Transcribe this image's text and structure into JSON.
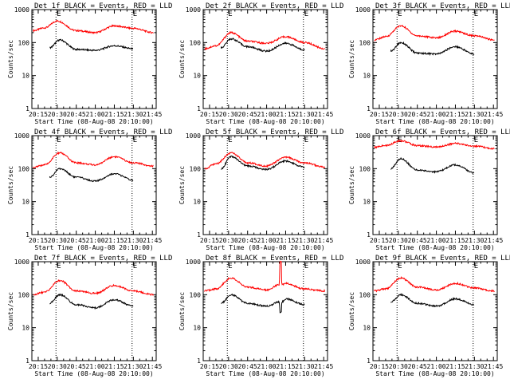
{
  "chart_data": [
    {
      "type": "line",
      "title": "Det 1f BLACK = Events, RED = LLD",
      "xlabel": "",
      "ylabel": "Counts/sec",
      "x_ticks": [
        "20:15",
        "20:30",
        "20:45",
        "21:00",
        "21:15",
        "21:30",
        "21:45"
      ],
      "y_ticks": [
        "1",
        "10",
        "100",
        "1000"
      ],
      "ylim": [
        1,
        1000
      ],
      "yscale": "log",
      "markers": [
        "E",
        "E"
      ],
      "marker_times": [
        "20:29",
        "21:29"
      ],
      "series": [
        {
          "name": "RED = LLD",
          "color": "#ff0000",
          "x": [
            "20:11",
            "20:20",
            "20:30",
            "20:45",
            "21:00",
            "21:15",
            "21:30",
            "21:46"
          ],
          "values": [
            230,
            280,
            450,
            230,
            200,
            320,
            270,
            200
          ]
        },
        {
          "name": "BLACK = Events",
          "color": "#000000",
          "x": [
            "20:24",
            "20:32",
            "20:45",
            "21:00",
            "21:15",
            "21:30"
          ],
          "values": [
            70,
            120,
            62,
            58,
            80,
            65
          ]
        }
      ]
    },
    {
      "type": "line",
      "title": "Det 2f BLACK = Events, RED = LLD",
      "xlabel": "",
      "ylabel": "Counts/sec",
      "x_ticks": [
        "20:15",
        "20:30",
        "20:45",
        "21:00",
        "21:15",
        "21:30",
        "21:45"
      ],
      "y_ticks": [
        "1",
        "10",
        "100",
        "1000"
      ],
      "ylim": [
        1,
        1000
      ],
      "yscale": "log",
      "markers": [
        "E",
        "E"
      ],
      "marker_times": [
        "20:29",
        "21:29"
      ],
      "series": [
        {
          "name": "RED = LLD",
          "color": "#ff0000",
          "x": [
            "20:11",
            "20:20",
            "20:32",
            "20:45",
            "21:00",
            "21:15",
            "21:30",
            "21:46"
          ],
          "values": [
            65,
            80,
            200,
            110,
            95,
            150,
            100,
            65
          ]
        },
        {
          "name": "BLACK = Events",
          "color": "#000000",
          "x": [
            "20:24",
            "20:32",
            "20:45",
            "21:00",
            "21:15",
            "21:30"
          ],
          "values": [
            70,
            130,
            75,
            55,
            95,
            60
          ]
        }
      ]
    },
    {
      "type": "line",
      "title": "Det 3f BLACK = Events, RED = LLD",
      "xlabel": "",
      "ylabel": "Counts/sec",
      "x_ticks": [
        "20:15",
        "20:30",
        "20:45",
        "21:00",
        "21:15",
        "21:30",
        "21:45"
      ],
      "y_ticks": [
        "1",
        "10",
        "100",
        "1000"
      ],
      "ylim": [
        1,
        1000
      ],
      "yscale": "log",
      "markers": [
        "E",
        "E"
      ],
      "marker_times": [
        "20:29",
        "21:29"
      ],
      "series": [
        {
          "name": "RED = LLD",
          "color": "#ff0000",
          "x": [
            "20:11",
            "20:20",
            "20:32",
            "20:45",
            "21:00",
            "21:15",
            "21:30",
            "21:46"
          ],
          "values": [
            120,
            150,
            320,
            160,
            140,
            220,
            160,
            120
          ]
        },
        {
          "name": "BLACK = Events",
          "color": "#000000",
          "x": [
            "20:24",
            "20:32",
            "20:45",
            "21:00",
            "21:15",
            "21:30"
          ],
          "values": [
            55,
            100,
            48,
            45,
            75,
            45
          ]
        }
      ]
    },
    {
      "type": "line",
      "title": "Det 4f BLACK = Events, RED = LLD",
      "xlabel": "",
      "ylabel": "Counts/sec",
      "x_ticks": [
        "20:15",
        "20:30",
        "20:45",
        "21:00",
        "21:15",
        "21:30",
        "21:45"
      ],
      "y_ticks": [
        "1",
        "10",
        "100",
        "1000"
      ],
      "ylim": [
        1,
        1000
      ],
      "yscale": "log",
      "markers": [
        "E",
        "E"
      ],
      "marker_times": [
        "20:29",
        "21:29"
      ],
      "series": [
        {
          "name": "RED = LLD",
          "color": "#ff0000",
          "x": [
            "20:11",
            "20:20",
            "20:32",
            "20:45",
            "21:00",
            "21:15",
            "21:30",
            "21:46"
          ],
          "values": [
            110,
            130,
            300,
            150,
            130,
            230,
            150,
            120
          ]
        },
        {
          "name": "BLACK = Events",
          "color": "#000000",
          "x": [
            "20:24",
            "20:32",
            "20:45",
            "21:00",
            "21:15",
            "21:30"
          ],
          "values": [
            55,
            100,
            55,
            42,
            70,
            45
          ]
        }
      ]
    },
    {
      "type": "line",
      "title": "Det 5f BLACK = Events, RED = LLD",
      "xlabel": "",
      "ylabel": "Counts/sec",
      "x_ticks": [
        "20:15",
        "20:30",
        "20:45",
        "21:00",
        "21:15",
        "21:30",
        "21:45"
      ],
      "y_ticks": [
        "1",
        "10",
        "100",
        "1000"
      ],
      "ylim": [
        1,
        1000
      ],
      "yscale": "log",
      "markers": [
        "E",
        "E"
      ],
      "marker_times": [
        "20:29",
        "21:29"
      ],
      "series": [
        {
          "name": "RED = LLD",
          "color": "#ff0000",
          "x": [
            "20:11",
            "20:20",
            "20:32",
            "20:45",
            "21:00",
            "21:15",
            "21:30",
            "21:46"
          ],
          "values": [
            100,
            140,
            300,
            150,
            120,
            220,
            150,
            110
          ]
        },
        {
          "name": "BLACK = Events",
          "color": "#000000",
          "x": [
            "20:24",
            "20:32",
            "20:45",
            "21:00",
            "21:15",
            "21:30"
          ],
          "values": [
            100,
            230,
            120,
            95,
            170,
            110
          ]
        }
      ]
    },
    {
      "type": "line",
      "title": "Det 6f BLACK = Events, RED = LLD",
      "xlabel": "",
      "ylabel": "Counts/sec",
      "x_ticks": [
        "20:15",
        "20:30",
        "20:45",
        "21:00",
        "21:15",
        "21:30",
        "21:45"
      ],
      "y_ticks": [
        "1",
        "10",
        "100",
        "1000"
      ],
      "ylim": [
        1,
        1000
      ],
      "yscale": "log",
      "markers": [
        "E",
        "E"
      ],
      "marker_times": [
        "20:29",
        "21:29"
      ],
      "series": [
        {
          "name": "RED = LLD",
          "color": "#ff0000",
          "x": [
            "20:11",
            "20:20",
            "20:32",
            "20:45",
            "21:00",
            "21:15",
            "21:30",
            "21:46"
          ],
          "values": [
            450,
            500,
            700,
            500,
            450,
            580,
            480,
            400
          ]
        },
        {
          "name": "BLACK = Events",
          "color": "#000000",
          "x": [
            "20:24",
            "20:32",
            "20:45",
            "21:00",
            "21:15",
            "21:30"
          ],
          "values": [
            100,
            200,
            90,
            80,
            130,
            75
          ]
        }
      ]
    },
    {
      "type": "line",
      "title": "Det 7f BLACK = Events, RED = LLD",
      "xlabel": "",
      "ylabel": "Counts/sec",
      "x_ticks": [
        "20:15",
        "20:30",
        "20:45",
        "21:00",
        "21:15",
        "21:30",
        "21:45"
      ],
      "y_ticks": [
        "1",
        "10",
        "100",
        "1000"
      ],
      "ylim": [
        1,
        1000
      ],
      "yscale": "log",
      "markers": [
        "E",
        "E"
      ],
      "marker_times": [
        "20:29",
        "21:29"
      ],
      "series": [
        {
          "name": "RED = LLD",
          "color": "#ff0000",
          "x": [
            "20:11",
            "20:20",
            "20:32",
            "20:45",
            "21:00",
            "21:15",
            "21:30",
            "21:46"
          ],
          "values": [
            100,
            120,
            270,
            130,
            110,
            190,
            130,
            100
          ]
        },
        {
          "name": "BLACK = Events",
          "color": "#000000",
          "x": [
            "20:24",
            "20:32",
            "20:45",
            "21:00",
            "21:15",
            "21:30"
          ],
          "values": [
            55,
            100,
            50,
            40,
            70,
            45
          ]
        }
      ]
    },
    {
      "type": "line",
      "title": "Det 8f BLACK = Events, RED = LLD",
      "xlabel": "",
      "ylabel": "Counts/sec",
      "x_ticks": [
        "20:15",
        "20:30",
        "20:45",
        "21:00",
        "21:15",
        "21:30",
        "21:45"
      ],
      "y_ticks": [
        "1",
        "10",
        "100",
        "1000"
      ],
      "ylim": [
        1,
        1000
      ],
      "yscale": "log",
      "markers": [
        "E",
        "E"
      ],
      "marker_times": [
        "20:29",
        "21:29"
      ],
      "series": [
        {
          "name": "RED = LLD",
          "color": "#ff0000",
          "x": [
            "20:11",
            "20:20",
            "20:32",
            "20:45",
            "21:00",
            "21:10",
            "21:10.5",
            "21:11.5",
            "21:12",
            "21:15",
            "21:30",
            "21:46"
          ],
          "values": [
            130,
            150,
            320,
            170,
            140,
            200,
            1000,
            1000,
            200,
            220,
            150,
            130
          ]
        },
        {
          "name": "BLACK = Events",
          "color": "#000000",
          "x": [
            "20:24",
            "20:32",
            "20:45",
            "21:00",
            "21:10",
            "21:10.5",
            "21:11.5",
            "21:12",
            "21:15",
            "21:30"
          ],
          "values": [
            55,
            100,
            55,
            45,
            60,
            30,
            30,
            60,
            75,
            50
          ]
        }
      ]
    },
    {
      "type": "line",
      "title": "Det 9f BLACK = Events, RED = LLD",
      "xlabel": "",
      "ylabel": "Counts/sec",
      "x_ticks": [
        "20:15",
        "20:30",
        "20:45",
        "21:00",
        "21:15",
        "21:30",
        "21:45"
      ],
      "y_ticks": [
        "1",
        "10",
        "100",
        "1000"
      ],
      "ylim": [
        1,
        1000
      ],
      "yscale": "log",
      "markers": [
        "E",
        "E"
      ],
      "marker_times": [
        "20:29",
        "21:29"
      ],
      "series": [
        {
          "name": "RED = LLD",
          "color": "#ff0000",
          "x": [
            "20:11",
            "20:20",
            "20:32",
            "20:45",
            "21:00",
            "21:15",
            "21:30",
            "21:46"
          ],
          "values": [
            130,
            150,
            320,
            170,
            140,
            220,
            160,
            130
          ]
        },
        {
          "name": "BLACK = Events",
          "color": "#000000",
          "x": [
            "20:24",
            "20:32",
            "20:45",
            "21:00",
            "21:15",
            "21:30"
          ],
          "values": [
            60,
            100,
            55,
            45,
            75,
            50
          ]
        }
      ]
    }
  ],
  "xaxis_caption": "Start Time (08-Aug-08 20:10:00)"
}
